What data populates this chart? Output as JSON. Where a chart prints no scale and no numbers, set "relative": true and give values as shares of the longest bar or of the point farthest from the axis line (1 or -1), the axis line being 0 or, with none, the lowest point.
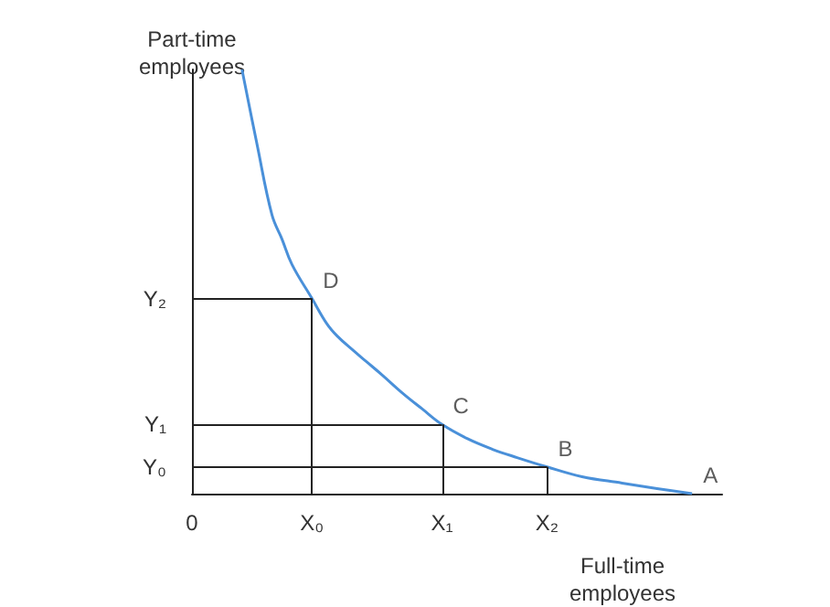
{
  "chart_data": {
    "type": "line",
    "xlabel": "Full-time\nemployees",
    "ylabel": "Part-time\nemployees",
    "relative": true,
    "categories": [
      "0",
      null,
      null,
      null,
      null,
      null,
      null,
      null,
      null,
      null,
      null,
      null,
      null,
      null,
      null,
      null,
      null,
      null,
      null,
      null,
      null,
      null,
      null,
      null,
      "X₀",
      null,
      null,
      null,
      null,
      null,
      null,
      null,
      null,
      null,
      null,
      null,
      null,
      null,
      null,
      null,
      null,
      null,
      null,
      null,
      null,
      null,
      null,
      null,
      null,
      null,
      "X₁",
      null,
      null,
      null,
      null,
      null,
      null,
      null,
      null,
      null,
      null,
      null,
      null,
      null,
      null,
      null,
      null,
      null,
      null,
      null,
      null,
      "X₂",
      null,
      null,
      null,
      null,
      null,
      null,
      null,
      null,
      null,
      null,
      null,
      null,
      null,
      null,
      null,
      null,
      null,
      null,
      null,
      null,
      null,
      null,
      null,
      null,
      null,
      null,
      null,
      null,
      null,
      null,
      null,
      null,
      null,
      null,
      null
    ],
    "series": [
      {
        "color": "#4a90d9",
        "values": [
          null,
          null,
          null,
          null,
          null,
          null,
          null,
          null,
          null,
          null,
          1.0,
          null,
          null,
          0.824,
          null,
          null,
          0.657,
          null,
          0.6,
          null,
          0.54,
          null,
          null,
          null,
          0.46,
          null,
          null,
          0.4,
          null,
          0.372,
          null,
          null,
          0.34,
          null,
          null,
          0.31,
          null,
          null,
          0.28,
          null,
          null,
          null,
          0.238,
          null,
          null,
          null,
          0.2,
          null,
          null,
          null,
          0.163,
          null,
          null,
          null,
          null,
          0.13,
          null,
          null,
          null,
          null,
          0.105,
          null,
          null,
          null,
          null,
          0.085,
          null,
          null,
          null,
          null,
          null,
          0.063,
          null,
          null,
          null,
          null,
          null,
          null,
          0.04,
          null,
          null,
          null,
          null,
          null,
          null,
          null,
          0.025,
          null,
          null,
          null,
          null,
          null,
          null,
          0.012,
          null,
          null,
          null,
          null,
          null,
          null,
          0,
          null,
          null,
          null,
          null,
          null,
          null
        ]
      }
    ],
    "ref_lines": [
      {
        "axis": "y",
        "value": 0.063,
        "label": "Y₀",
        "color": "#222222"
      },
      {
        "axis": "y",
        "value": 0.163,
        "label": "Y₁",
        "color": "#222222"
      },
      {
        "axis": "y",
        "value": 0.46,
        "label": "Y₂",
        "color": "#222222"
      }
    ],
    "annotations": [
      {
        "text": "D",
        "x": "X₀",
        "y": 0.46
      },
      {
        "text": "C",
        "x": "X₁",
        "y": 0.163
      },
      {
        "text": "B",
        "x": "X₂",
        "y": 0.063
      },
      "A"
    ],
    "grid": false,
    "marker": "none",
    "line_style": "solid"
  }
}
